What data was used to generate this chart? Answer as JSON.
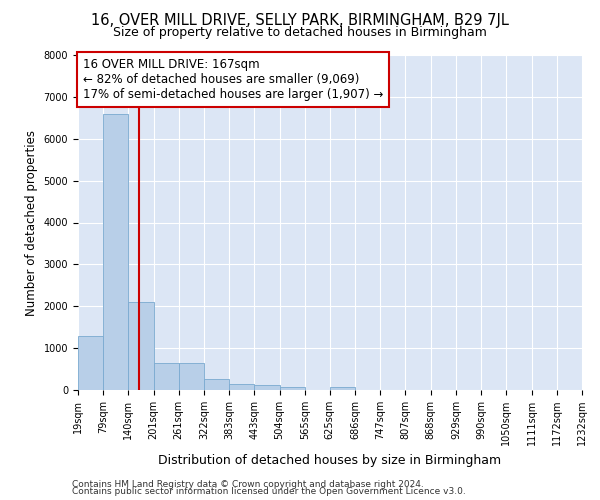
{
  "title1": "16, OVER MILL DRIVE, SELLY PARK, BIRMINGHAM, B29 7JL",
  "title2": "Size of property relative to detached houses in Birmingham",
  "xlabel": "Distribution of detached houses by size in Birmingham",
  "ylabel": "Number of detached properties",
  "bin_edges": [
    19,
    79,
    140,
    201,
    261,
    322,
    383,
    443,
    504,
    565,
    625,
    686,
    747,
    807,
    868,
    929,
    990,
    1050,
    1111,
    1172,
    1232
  ],
  "bin_counts": [
    1300,
    6600,
    2100,
    640,
    640,
    260,
    140,
    110,
    60,
    0,
    80,
    0,
    0,
    0,
    0,
    0,
    0,
    0,
    0,
    0
  ],
  "bar_color": "#b8cfe8",
  "bar_edge_color": "#7aaad0",
  "vline_x": 167,
  "vline_color": "#cc0000",
  "annotation_line1": "16 OVER MILL DRIVE: 167sqm",
  "annotation_line2": "← 82% of detached houses are smaller (9,069)",
  "annotation_line3": "17% of semi-detached houses are larger (1,907) →",
  "annotation_box_color": "#ffffff",
  "annotation_box_edge_color": "#cc0000",
  "ylim": [
    0,
    8000
  ],
  "yticks": [
    0,
    1000,
    2000,
    3000,
    4000,
    5000,
    6000,
    7000,
    8000
  ],
  "bg_color": "#dce6f5",
  "grid_color": "#ffffff",
  "footer1": "Contains HM Land Registry data © Crown copyright and database right 2024.",
  "footer2": "Contains public sector information licensed under the Open Government Licence v3.0.",
  "title1_fontsize": 10.5,
  "title2_fontsize": 9,
  "xlabel_fontsize": 9,
  "ylabel_fontsize": 8.5,
  "tick_fontsize": 7,
  "annotation_fontsize": 8.5,
  "footer_fontsize": 6.5
}
